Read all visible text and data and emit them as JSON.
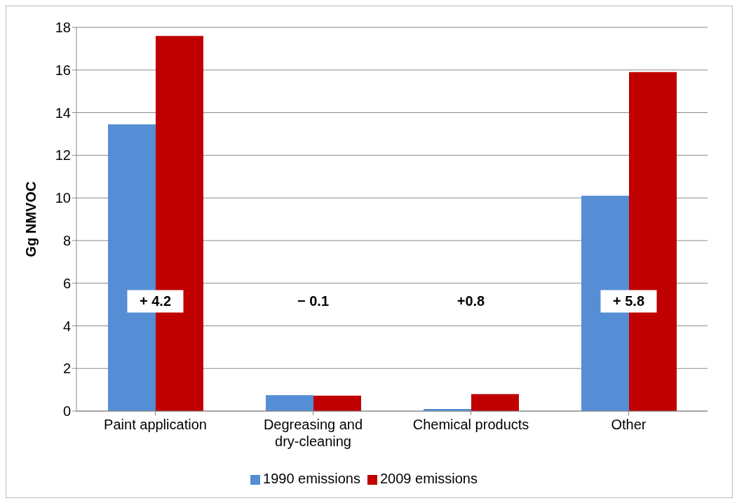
{
  "chart_data": {
    "type": "bar",
    "ylabel": "Gg NMVOC",
    "categories": [
      "Paint application",
      "Degreasing and dry-cleaning",
      "Chemical products",
      "Other"
    ],
    "series": [
      {
        "name": "1990 emissions",
        "color": "#558ed5",
        "values": [
          13.45,
          0.75,
          0.1,
          10.1
        ]
      },
      {
        "name": "2009 emissions",
        "color": "#c00000",
        "values": [
          17.6,
          0.72,
          0.8,
          15.9
        ]
      }
    ],
    "ylim": [
      0,
      18
    ],
    "yticks": [
      0,
      2,
      4,
      6,
      8,
      10,
      12,
      14,
      16,
      18
    ],
    "grid": "y",
    "legend": "bottom",
    "annotations": [
      "+ 4.2",
      "− 0.1",
      "+0.8",
      "+ 5.8"
    ]
  }
}
